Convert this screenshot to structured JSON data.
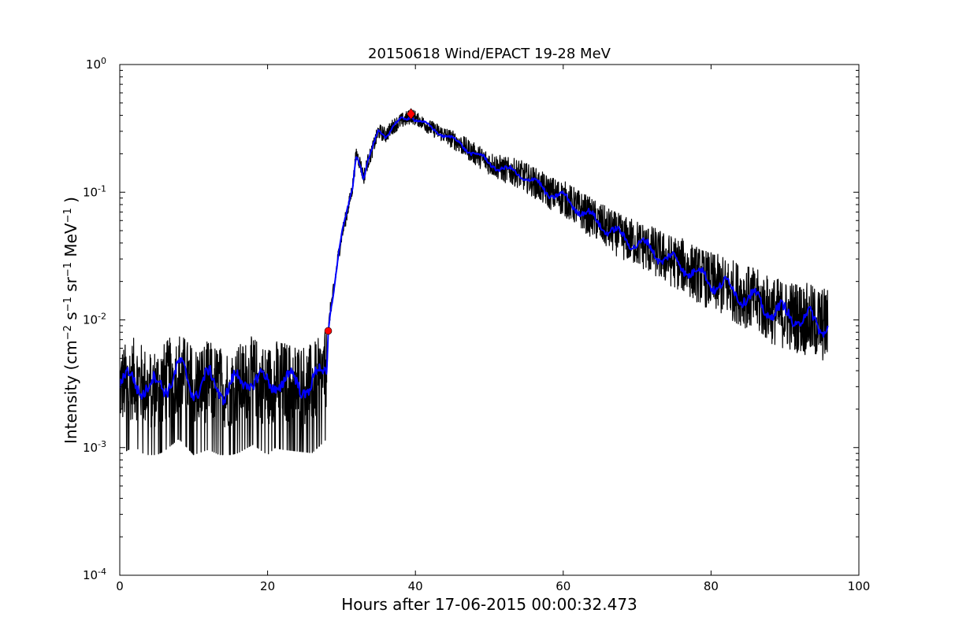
{
  "chart_data": {
    "type": "line",
    "title": "20150618 Wind/EPACT 19-28 MeV",
    "xlabel": "Hours after 17-06-2015 00:00:32.473",
    "ylabel_parts": {
      "prefix": "Intensity (cm",
      "e1": "−2",
      "s": " s",
      "e2": "−1",
      "sr": " sr",
      "e3": "−1",
      "mev": " MeV",
      "e4": "−1",
      "suffix": " )"
    },
    "xlim": [
      0,
      100
    ],
    "ylim": [
      0.0001,
      1
    ],
    "yscale": "log",
    "grid": false,
    "x_ticks": [
      "0",
      "20",
      "40",
      "60",
      "80",
      "100"
    ],
    "y_ticks": [
      {
        "base": "10",
        "exp": "-4",
        "value": 0.0001
      },
      {
        "base": "10",
        "exp": "-3",
        "value": 0.001
      },
      {
        "base": "10",
        "exp": "-2",
        "value": 0.01
      },
      {
        "base": "10",
        "exp": "-1",
        "value": 0.1
      },
      {
        "base": "10",
        "exp": "0",
        "value": 1
      }
    ],
    "series": [
      {
        "role": "raw intensity",
        "color": "#000000",
        "x": [
          0,
          2,
          4,
          6,
          8,
          10,
          12,
          14,
          16,
          18,
          20,
          21,
          22,
          24,
          26,
          27,
          28,
          28.2,
          28.5,
          29,
          29.5,
          30,
          31,
          31.5,
          32,
          32.5,
          33,
          33.5,
          34,
          35,
          36,
          37,
          38,
          39,
          39.4,
          40,
          41,
          42,
          44,
          46,
          48,
          50,
          52,
          54,
          56,
          58,
          60,
          62,
          64,
          66,
          68,
          70,
          72,
          74,
          76,
          78,
          80,
          82,
          84,
          86,
          88,
          90,
          92,
          94,
          95.8
        ],
        "y": [
          0.003,
          0.0035,
          0.0028,
          0.0032,
          0.004,
          0.003,
          0.0033,
          0.0029,
          0.0031,
          0.0036,
          0.003,
          0.0034,
          0.0033,
          0.0032,
          0.0031,
          0.0035,
          0.004,
          0.008,
          0.012,
          0.018,
          0.03,
          0.045,
          0.08,
          0.11,
          0.2,
          0.17,
          0.13,
          0.17,
          0.2,
          0.3,
          0.28,
          0.33,
          0.36,
          0.38,
          0.4,
          0.38,
          0.35,
          0.32,
          0.28,
          0.24,
          0.2,
          0.17,
          0.15,
          0.14,
          0.12,
          0.1,
          0.09,
          0.075,
          0.062,
          0.052,
          0.044,
          0.04,
          0.035,
          0.03,
          0.027,
          0.023,
          0.02,
          0.018,
          0.016,
          0.014,
          0.012,
          0.011,
          0.0105,
          0.0095,
          0.009
        ]
      },
      {
        "role": "smoothed intensity",
        "color": "#0000ff",
        "x": [
          0,
          2,
          4,
          6,
          8,
          10,
          12,
          14,
          16,
          18,
          20,
          21,
          22,
          24,
          26,
          27,
          28,
          28.2,
          28.5,
          29,
          29.5,
          30,
          31,
          31.5,
          32,
          32.5,
          33,
          33.5,
          34,
          35,
          36,
          37,
          38,
          39,
          39.4,
          40,
          41,
          42,
          44,
          46,
          48,
          50,
          52,
          54,
          56,
          58,
          60,
          62,
          64,
          66,
          68,
          70,
          72,
          74,
          76,
          78,
          80,
          82,
          84,
          86,
          88,
          90,
          92,
          94,
          95.8
        ],
        "y": [
          0.003,
          0.0035,
          0.0028,
          0.0032,
          0.004,
          0.003,
          0.0033,
          0.0029,
          0.0031,
          0.0036,
          0.003,
          0.0034,
          0.0033,
          0.0032,
          0.0031,
          0.0035,
          0.004,
          0.008,
          0.012,
          0.018,
          0.03,
          0.045,
          0.08,
          0.11,
          0.2,
          0.17,
          0.13,
          0.17,
          0.2,
          0.3,
          0.28,
          0.33,
          0.36,
          0.38,
          0.4,
          0.38,
          0.35,
          0.32,
          0.28,
          0.24,
          0.2,
          0.17,
          0.15,
          0.14,
          0.12,
          0.1,
          0.09,
          0.075,
          0.062,
          0.052,
          0.044,
          0.04,
          0.035,
          0.03,
          0.027,
          0.023,
          0.02,
          0.018,
          0.016,
          0.014,
          0.012,
          0.011,
          0.0105,
          0.0095,
          0.009
        ]
      }
    ],
    "markers": [
      {
        "role": "onset",
        "shape": "circle",
        "color": "#ff0000",
        "x": 28.2,
        "y": 0.0082
      },
      {
        "role": "peak",
        "shape": "diamond",
        "color": "#ff0000",
        "x": 39.4,
        "y": 0.41
      }
    ]
  }
}
